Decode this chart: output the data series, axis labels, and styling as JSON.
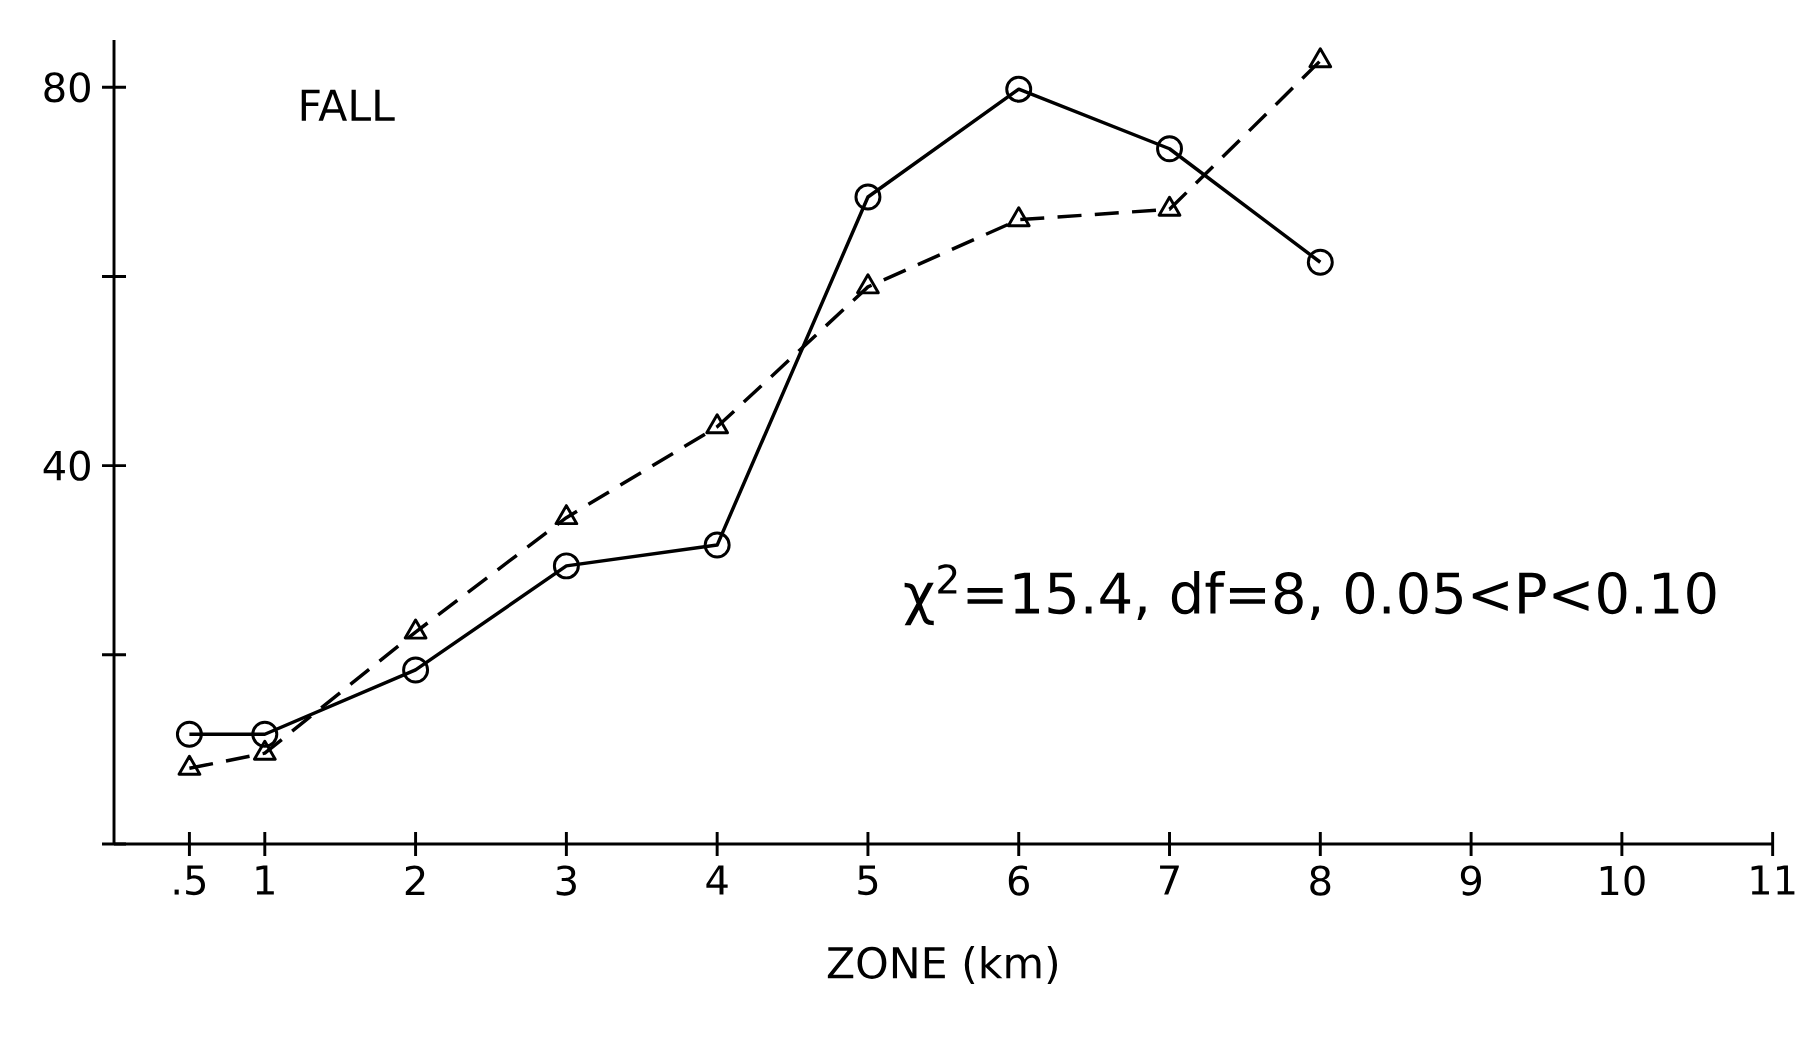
{
  "chart_data": {
    "type": "line",
    "title": "FALL",
    "xlabel": "ZONE (km)",
    "x": [
      0.5,
      1,
      2,
      3,
      4,
      5,
      6,
      7,
      8
    ],
    "series": [
      {
        "color": "#000000",
        "marker": "circle",
        "line_style": "solid",
        "values": [
          11.6,
          11.6,
          18.4,
          29.4,
          31.6,
          68.4,
          79.8,
          73.5,
          61.5
        ]
      },
      {
        "color": "#000000",
        "marker": "triangle",
        "line_style": "dashed",
        "values": [
          8,
          9.6,
          22.4,
          34.5,
          44.1,
          58.9,
          66,
          67.1,
          82.8
        ]
      }
    ],
    "xlim": [
      0,
      11
    ],
    "ylim": [
      0,
      85
    ],
    "xticks": [
      {
        "value": 0.5,
        "label": ".5"
      },
      1,
      2,
      3,
      4,
      5,
      6,
      7,
      8,
      9,
      10,
      11
    ],
    "yticks": [
      {
        "value": 0,
        "label": null
      },
      {
        "value": 20,
        "label": null
      },
      40,
      {
        "value": 60,
        "label": null
      },
      80
    ],
    "annotations": [
      "χ$^{2}$=15.4, df=8, 0.05<P<0.10"
    ]
  }
}
